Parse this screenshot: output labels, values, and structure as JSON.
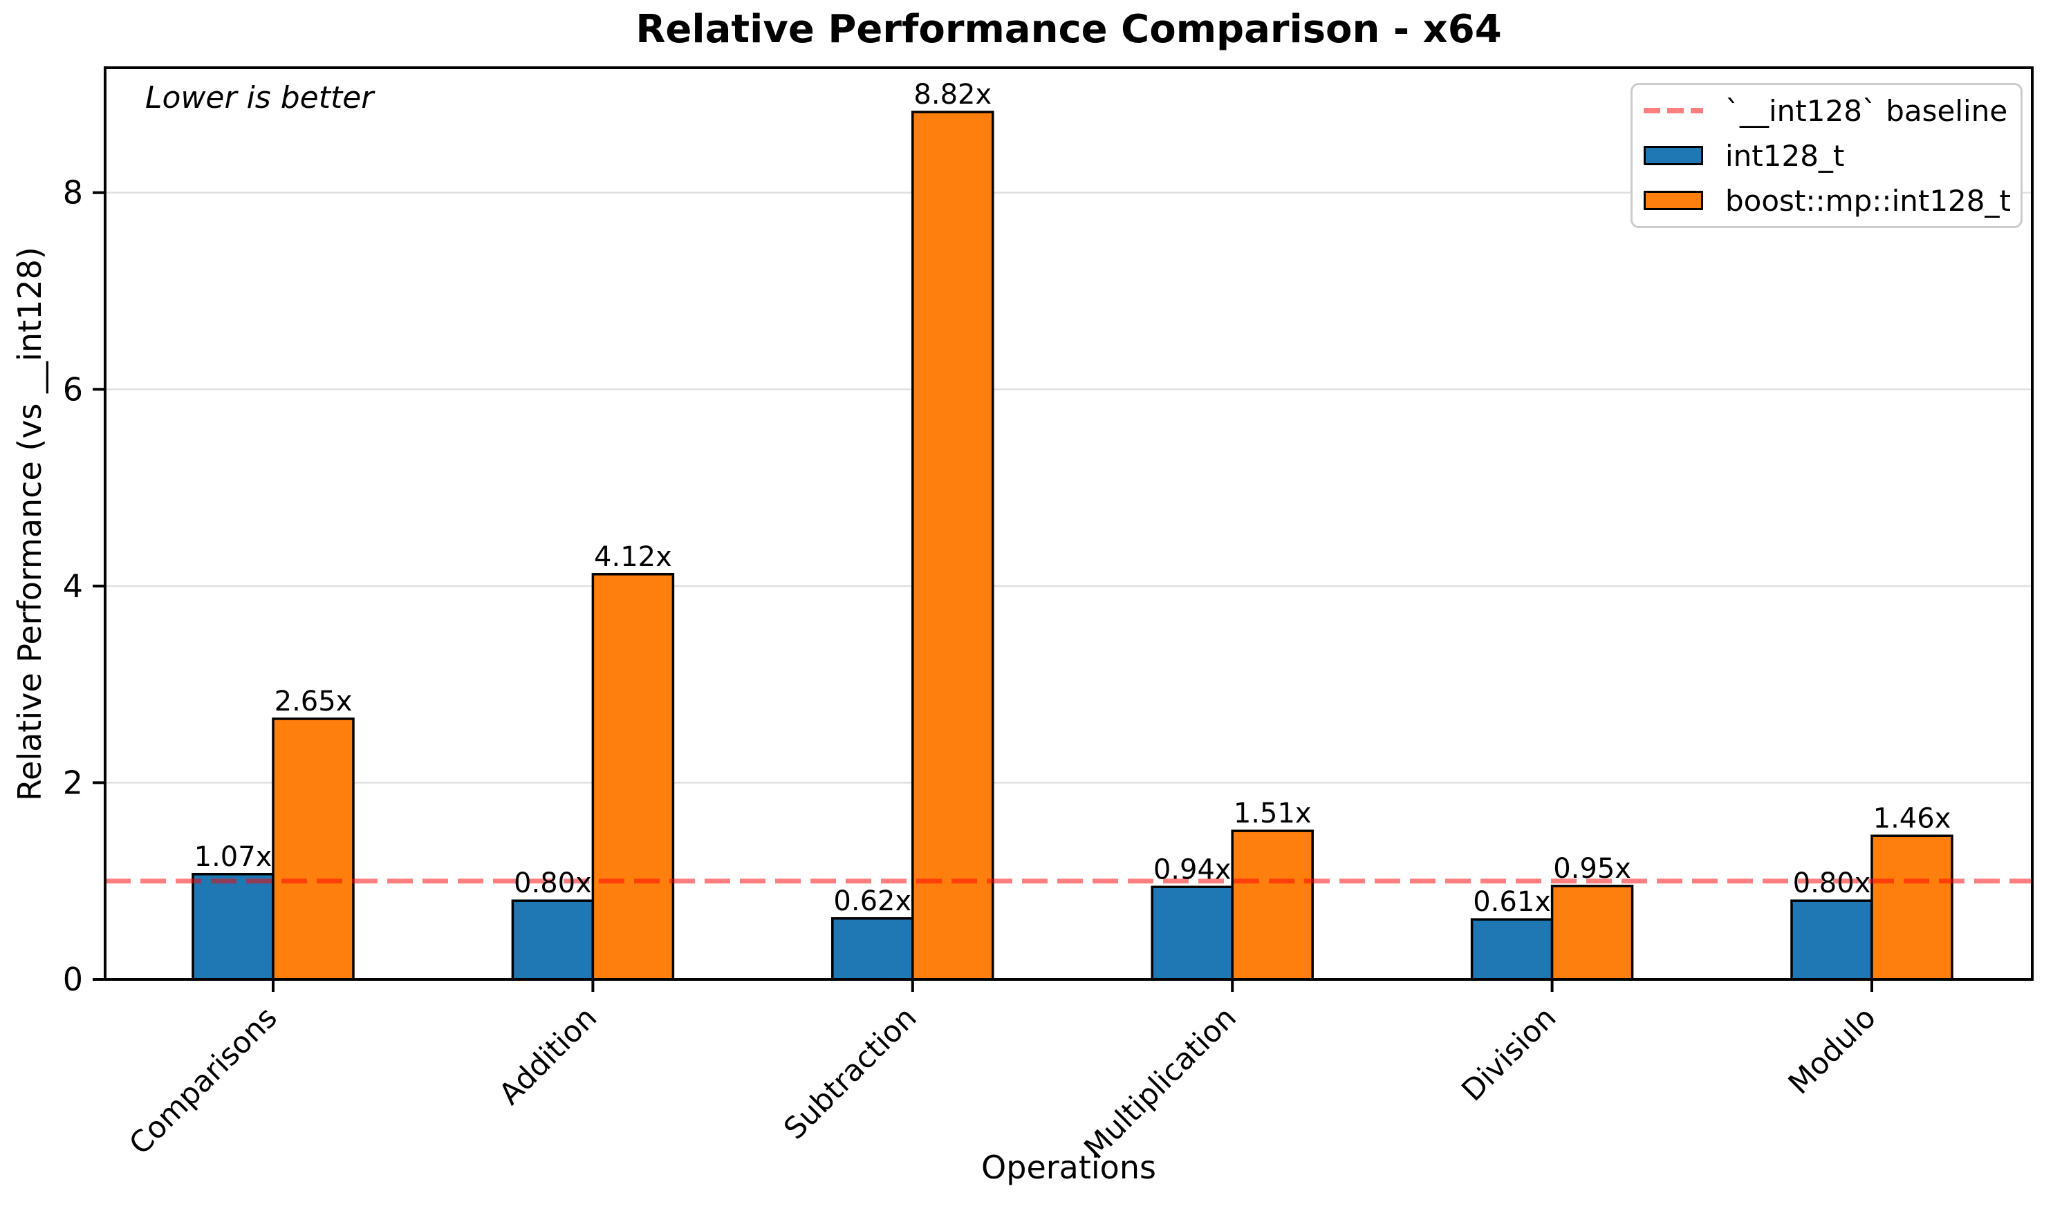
{
  "chart_data": {
    "type": "bar",
    "title": "Relative Performance Comparison - x64",
    "xlabel": "Operations",
    "ylabel": "Relative Performance (vs __int128)",
    "annotation": "Lower is better",
    "categories": [
      "Comparisons",
      "Addition",
      "Subtraction",
      "Multiplication",
      "Division",
      "Modulo"
    ],
    "series": [
      {
        "name": "int128_t",
        "color": "#1f77b4",
        "values": [
          1.07,
          0.8,
          0.62,
          0.94,
          0.61,
          0.8
        ]
      },
      {
        "name": "boost::mp::int128_t",
        "color": "#ff7f0e",
        "values": [
          2.65,
          4.12,
          8.82,
          1.51,
          0.95,
          1.46
        ]
      }
    ],
    "value_label_suffix": "x",
    "baseline": {
      "value": 1.0,
      "label": "`__int128` baseline",
      "color": "#ff0000",
      "alpha": 0.5
    },
    "yticks": [
      0,
      2,
      4,
      6,
      8
    ],
    "ylim": [
      0,
      9.27
    ],
    "grid": true,
    "gridline_color": "#e0e0e0",
    "bar_edge_color": "#000000",
    "legend_position": "upper right"
  }
}
